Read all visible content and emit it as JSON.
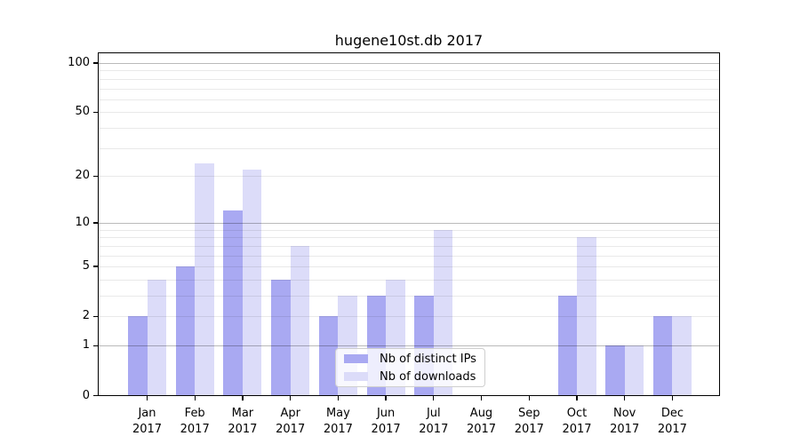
{
  "title": "hugene10st.db 2017",
  "chart_data": {
    "type": "bar",
    "title": "hugene10st.db 2017",
    "scale": "log10(1+value)",
    "grid": true,
    "months": [
      "Jan",
      "Feb",
      "Mar",
      "Apr",
      "May",
      "Jun",
      "Jul",
      "Aug",
      "Sep",
      "Oct",
      "Nov",
      "Dec"
    ],
    "year": "2017",
    "categories": [
      "Jan 2017",
      "Feb 2017",
      "Mar 2017",
      "Apr 2017",
      "May 2017",
      "Jun 2017",
      "Jul 2017",
      "Aug 2017",
      "Sep 2017",
      "Oct 2017",
      "Nov 2017",
      "Dec 2017"
    ],
    "series": [
      {
        "name": "Nb of distinct IPs",
        "color": "#a9a9f2",
        "values": [
          2,
          5,
          12,
          4,
          2,
          3,
          3,
          0,
          0,
          3,
          1,
          2
        ]
      },
      {
        "name": "Nb of downloads",
        "color": "#dcdcf9",
        "values": [
          4,
          24,
          22,
          7,
          3,
          4,
          9,
          0,
          0,
          8,
          1,
          2
        ]
      }
    ],
    "yticks": [
      0,
      1,
      2,
      5,
      10,
      20,
      50,
      100
    ],
    "ylim": [
      0,
      116
    ],
    "minor_grid_values": [
      2,
      3,
      4,
      5,
      6,
      7,
      8,
      9,
      20,
      30,
      40,
      50,
      60,
      70,
      80,
      90
    ],
    "major_grid_values": [
      1,
      10,
      100
    ],
    "legend_position": "lower center"
  }
}
